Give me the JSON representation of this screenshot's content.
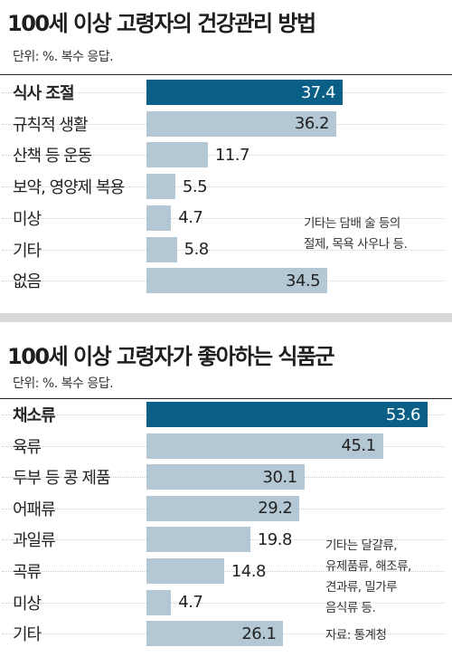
{
  "chart_data": [
    {
      "type": "bar",
      "title": "100세 이상 고령자의 건강관리 방법",
      "unit": "단위: %. 복수 응답.",
      "categories": [
        "식사 조절",
        "규칙적 생활",
        "산책 등 운동",
        "보약, 영양제 복용",
        "미상",
        "기타",
        "없음"
      ],
      "values": [
        37.4,
        36.2,
        11.7,
        5.5,
        4.7,
        5.8,
        34.5
      ],
      "value_labels": [
        "37.4",
        "36.2",
        "11.7",
        "5.5",
        "4.7",
        "5.8",
        "34.5"
      ],
      "highlight_index": 0,
      "note": "기타는 담배 술 등의\n절제, 목욕 사우나 등.",
      "xlim": [
        0,
        60
      ]
    },
    {
      "type": "bar",
      "title": "100세 이상 고령자가 좋아하는 식품군",
      "unit": "단위: %. 복수 응답.",
      "categories": [
        "채소류",
        "육류",
        "두부 등 콩 제품",
        "어패류",
        "과일류",
        "곡류",
        "미상",
        "기타"
      ],
      "values": [
        53.6,
        45.1,
        30.1,
        29.2,
        19.8,
        14.8,
        4.7,
        26.1
      ],
      "value_labels": [
        "53.6",
        "45.1",
        "30.1",
        "29.2",
        "19.8",
        "14.8",
        "4.7",
        "26.1"
      ],
      "highlight_index": 0,
      "note": "기타는 달걀류,\n유제품류, 해조류,\n견과류, 밀가루\n음식류 등.",
      "source": "자료: 통계청",
      "xlim": [
        0,
        60
      ]
    }
  ],
  "colors": {
    "highlight": "#0a5f86",
    "bar": "#b4c7d4",
    "highlight_text": "#ffffff",
    "highlight_value_outside": "#0a5f86",
    "value_text": "#222222"
  }
}
